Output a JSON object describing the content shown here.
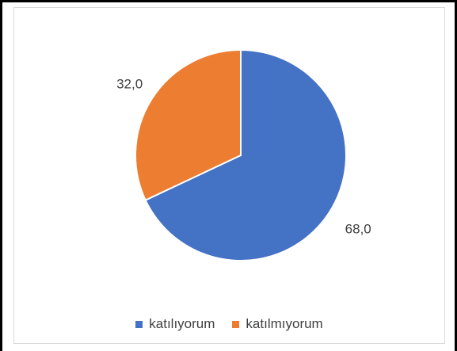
{
  "chart_data": {
    "type": "pie",
    "categories": [
      "katılıyorum",
      "katılmıyorum"
    ],
    "values": [
      68.0,
      32.0
    ],
    "data_labels": [
      "68,0",
      "32,0"
    ],
    "colors": [
      "#4472c4",
      "#ed7d31"
    ],
    "legend_position": "bottom",
    "start_angle": "12 o'clock, clockwise",
    "title": ""
  }
}
